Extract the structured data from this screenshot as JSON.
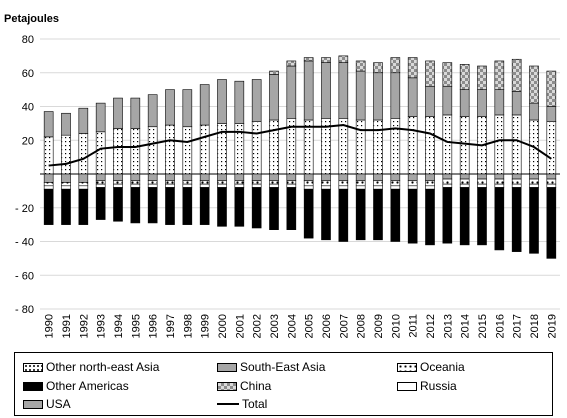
{
  "chart_data": {
    "type": "bar",
    "stacked": true,
    "unit_label": "Petajoules",
    "categories": [
      "1990",
      "1991",
      "1992",
      "1993",
      "1994",
      "1995",
      "1996",
      "1997",
      "1998",
      "1999",
      "2000",
      "2001",
      "2002",
      "2003",
      "2004",
      "2005",
      "2006",
      "2007",
      "2008",
      "2009",
      "2010",
      "2011",
      "2012",
      "2013",
      "2014",
      "2015",
      "2016",
      "2017",
      "2018",
      "2019"
    ],
    "ylim": [
      -80,
      80
    ],
    "yticks": [
      80,
      60,
      40,
      20,
      0,
      -20,
      -40,
      -60,
      -80
    ],
    "ytick_labels": [
      "80",
      "60",
      "40",
      "20",
      "",
      "- 20",
      "- 40",
      "- 60",
      "- 80"
    ],
    "grid": true,
    "legend_position": "bottom",
    "series": [
      {
        "name": "Other north-east Asia",
        "color": "#ffffff",
        "pattern": "dotted",
        "side": "positive",
        "values": [
          22,
          23,
          24,
          25,
          27,
          27,
          28,
          29,
          28,
          29,
          30,
          30,
          31,
          32,
          33,
          32,
          33,
          33,
          32,
          32,
          33,
          34,
          34,
          35,
          34,
          34,
          35,
          35,
          32,
          31
        ]
      },
      {
        "name": "South-East Asia",
        "color": "#a6a6a6",
        "side": "positive",
        "values": [
          15,
          13,
          15,
          17,
          18,
          18,
          19,
          21,
          22,
          24,
          26,
          25,
          25,
          27,
          31,
          35,
          33,
          33,
          29,
          28,
          27,
          23,
          18,
          17,
          16,
          16,
          15,
          14,
          10,
          9
        ]
      },
      {
        "name": "China",
        "color": "#a6a6a6",
        "pattern": "checker",
        "side": "positive",
        "values": [
          0,
          0,
          0,
          0,
          0,
          0,
          0,
          0,
          0,
          0,
          0,
          0,
          0,
          2,
          3,
          2,
          3,
          4,
          6,
          6,
          9,
          12,
          15,
          14,
          15,
          14,
          17,
          19,
          22,
          21
        ]
      },
      {
        "name": "USA",
        "color": "#a6a6a6",
        "side": "negative",
        "values": [
          -5,
          -5,
          -5,
          -4,
          -4,
          -4,
          -4,
          -4,
          -4,
          -4,
          -4,
          -4,
          -4,
          -4,
          -4,
          -4,
          -4,
          -4,
          -4,
          -4,
          -4,
          -4,
          -4,
          -3,
          -3,
          -3,
          -3,
          -3,
          -3,
          -3
        ]
      },
      {
        "name": "Oceania",
        "color": "#ffffff",
        "pattern": "dots",
        "side": "negative",
        "values": [
          -2,
          -2,
          -2,
          -2,
          -2,
          -2,
          -2,
          -2,
          -2,
          -2,
          -2,
          -2,
          -2,
          -2,
          -2,
          -3,
          -3,
          -3,
          -3,
          -3,
          -3,
          -3,
          -3,
          -3,
          -3,
          -3,
          -3,
          -3,
          -3,
          -3
        ]
      },
      {
        "name": "Russia",
        "color": "#ffffff",
        "side": "negative",
        "values": [
          -2,
          -2,
          -2,
          -2,
          -2,
          -2,
          -2,
          -2,
          -2,
          -2,
          -2,
          -2,
          -2,
          -2,
          -2,
          -2,
          -2,
          -2,
          -2,
          -2,
          -2,
          -2,
          -2,
          -2,
          -2,
          -2,
          -2,
          -2,
          -2,
          -2
        ]
      },
      {
        "name": "Other Americas",
        "color": "#000000",
        "side": "negative",
        "values": [
          -21,
          -21,
          -21,
          -19,
          -20,
          -21,
          -21,
          -22,
          -22,
          -22,
          -23,
          -23,
          -24,
          -25,
          -25,
          -29,
          -30,
          -31,
          -30,
          -30,
          -31,
          -32,
          -33,
          -33,
          -34,
          -34,
          -37,
          -38,
          -39,
          -42
        ]
      },
      {
        "name": "Total",
        "type": "line",
        "color": "#000000",
        "values": [
          5,
          6,
          9,
          15,
          16,
          16,
          18,
          20,
          19,
          22,
          25,
          25,
          24,
          26,
          28,
          28,
          28,
          29,
          26,
          26,
          27,
          26,
          24,
          19,
          18,
          17,
          20,
          20,
          16,
          9
        ]
      }
    ],
    "legend_entries": [
      "Other north-east Asia",
      "South-East Asia",
      "Oceania",
      "Other Americas",
      "China",
      "Russia",
      "USA",
      "Total"
    ]
  }
}
